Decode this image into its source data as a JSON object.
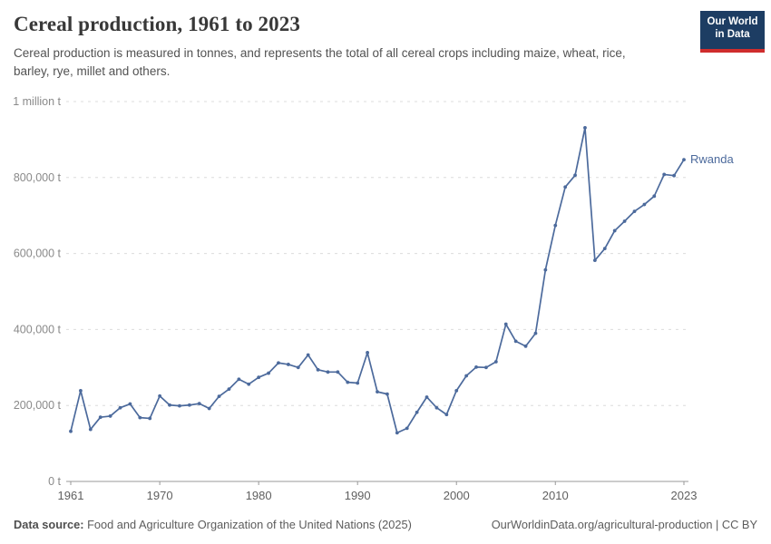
{
  "header": {
    "title": "Cereal production, 1961 to 2023",
    "subtitle": "Cereal production is measured in tonnes, and represents the total of all cereal crops including maize, wheat, rice, barley, rye, millet and others.",
    "logo": {
      "line1": "Our World",
      "line2": "in Data",
      "bg_color": "#1d3d63",
      "bar_color": "#cf2d2d"
    }
  },
  "chart_data": {
    "type": "line",
    "title": "Cereal production, 1961 to 2023",
    "xlabel": "",
    "ylabel": "",
    "xlim": [
      1961,
      2023
    ],
    "ylim": [
      0,
      1000000
    ],
    "grid": "horizontal-dashed",
    "legend": "end-of-line-label",
    "line_color": "#4c6a9c",
    "axis_color": "#999999",
    "grid_color": "#dcdcdc",
    "ytick_values": [
      0,
      200000,
      400000,
      600000,
      800000,
      1000000
    ],
    "ytick_labels": [
      "0 t",
      "200,000 t",
      "400,000 t",
      "600,000 t",
      "800,000 t",
      "1 million t"
    ],
    "xtick_values": [
      1961,
      1970,
      1980,
      1990,
      2000,
      2010,
      2023
    ],
    "xtick_labels": [
      "1961",
      "1970",
      "1980",
      "1990",
      "2000",
      "2010",
      "2023"
    ],
    "series": [
      {
        "name": "Rwanda",
        "color": "#4c6a9c",
        "x": [
          1961,
          1962,
          1963,
          1964,
          1965,
          1966,
          1967,
          1968,
          1969,
          1970,
          1971,
          1972,
          1973,
          1974,
          1975,
          1976,
          1977,
          1978,
          1979,
          1980,
          1981,
          1982,
          1983,
          1984,
          1985,
          1986,
          1987,
          1988,
          1989,
          1990,
          1991,
          1992,
          1993,
          1994,
          1995,
          1996,
          1997,
          1998,
          1999,
          2000,
          2001,
          2002,
          2003,
          2004,
          2005,
          2006,
          2007,
          2008,
          2009,
          2010,
          2011,
          2012,
          2013,
          2014,
          2015,
          2016,
          2017,
          2018,
          2019,
          2020,
          2021,
          2022,
          2023
        ],
        "values": [
          132000,
          239000,
          137000,
          169000,
          172000,
          194000,
          204000,
          168000,
          166000,
          225000,
          201000,
          199000,
          201000,
          205000,
          192000,
          224000,
          243000,
          269000,
          256000,
          274000,
          285000,
          312000,
          308000,
          300000,
          333000,
          294000,
          288000,
          288000,
          261000,
          259000,
          339000,
          236000,
          230000,
          128000,
          140000,
          182000,
          222000,
          194000,
          176000,
          239000,
          278000,
          301000,
          300000,
          315000,
          414000,
          369000,
          356000,
          390000,
          557000,
          674000,
          775000,
          806000,
          931000,
          582000,
          613000,
          660000,
          685000,
          711000,
          729000,
          751000,
          808000,
          805000,
          847000
        ]
      }
    ]
  },
  "footer": {
    "datasource_label": "Data source:",
    "datasource_text": " Food and Agriculture Organization of the United Nations (2025)",
    "link_text": "OurWorldinData.org/agricultural-production | CC BY"
  }
}
